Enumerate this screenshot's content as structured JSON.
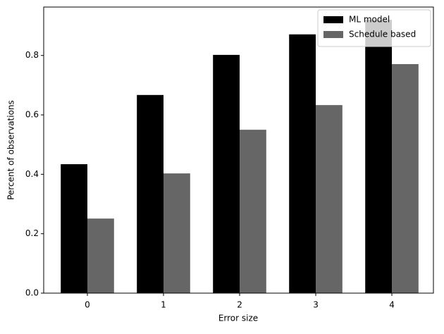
{
  "chart_data": {
    "type": "grouped_bar",
    "x": [
      0,
      1,
      2,
      3,
      4
    ],
    "xlabel": "Error size",
    "ylabel": "Percent of observations",
    "series": [
      {
        "name": "ML model",
        "color": "#000000",
        "values": [
          0.434,
          0.667,
          0.802,
          0.871,
          0.92
        ]
      },
      {
        "name": "Schedule based",
        "color": "#666666",
        "values": [
          0.251,
          0.403,
          0.55,
          0.633,
          0.771
        ]
      }
    ],
    "bar_width": 0.35,
    "xlim": [
      -0.574,
      4.546
    ],
    "xticks": [
      0,
      1,
      2,
      3,
      4
    ],
    "ylim": [
      0,
      0.963
    ],
    "yticks": [
      {
        "value": 0,
        "label": "0.0"
      },
      0.2,
      0.4,
      0.6,
      0.8
    ],
    "legend": "upper right"
  }
}
